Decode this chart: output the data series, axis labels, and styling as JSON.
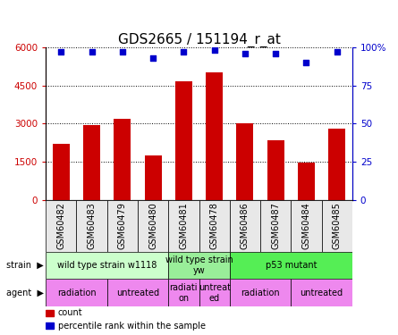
{
  "title": "GDS2665 / 151194_r_at",
  "samples": [
    "GSM60482",
    "GSM60483",
    "GSM60479",
    "GSM60480",
    "GSM60481",
    "GSM60478",
    "GSM60486",
    "GSM60487",
    "GSM60484",
    "GSM60485"
  ],
  "counts": [
    2200,
    2950,
    3200,
    1750,
    4650,
    5000,
    3000,
    2350,
    1450,
    2800
  ],
  "percentiles": [
    97,
    97,
    97,
    93,
    97,
    98,
    96,
    96,
    90,
    97
  ],
  "ylim_left": [
    0,
    6000
  ],
  "ylim_right": [
    0,
    100
  ],
  "yticks_left": [
    0,
    1500,
    3000,
    4500,
    6000
  ],
  "yticks_right": [
    0,
    25,
    50,
    75,
    100
  ],
  "ytick_labels_right": [
    "0",
    "25",
    "50",
    "75",
    "100%"
  ],
  "bar_color": "#cc0000",
  "dot_color": "#0000cc",
  "strain_groups": [
    {
      "label": "wild type strain w1118",
      "start": 0,
      "end": 4,
      "color": "#ccffcc"
    },
    {
      "label": "wild type strain\nyw",
      "start": 4,
      "end": 6,
      "color": "#99ee99"
    },
    {
      "label": "p53 mutant",
      "start": 6,
      "end": 10,
      "color": "#55ee55"
    }
  ],
  "agent_groups": [
    {
      "label": "radiation",
      "start": 0,
      "end": 2,
      "color": "#ee88ee"
    },
    {
      "label": "untreated",
      "start": 2,
      "end": 4,
      "color": "#ee88ee"
    },
    {
      "label": "radiati\non",
      "start": 4,
      "end": 5,
      "color": "#ee88ee"
    },
    {
      "label": "untreat\ned",
      "start": 5,
      "end": 6,
      "color": "#ee88ee"
    },
    {
      "label": "radiation",
      "start": 6,
      "end": 8,
      "color": "#ee88ee"
    },
    {
      "label": "untreated",
      "start": 8,
      "end": 10,
      "color": "#ee88ee"
    }
  ],
  "grid_color": "#000000",
  "background_color": "#ffffff",
  "title_fontsize": 11,
  "tick_fontsize": 7.5,
  "label_fontsize": 7,
  "bar_width": 0.55,
  "sample_cell_color": "#e8e8e8",
  "left_label_color": "#000000"
}
